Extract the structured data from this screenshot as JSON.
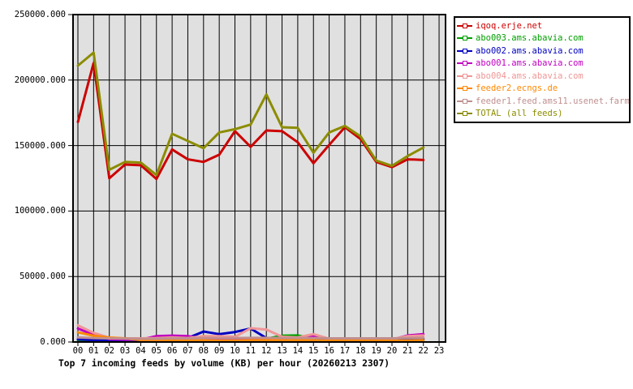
{
  "chart_data": {
    "type": "line",
    "title": "Top 7 incoming feeds by volume (KB) per hour (20260213 2307)",
    "xlabel": "",
    "ylabel": "",
    "x_categories": [
      "00",
      "01",
      "02",
      "03",
      "04",
      "05",
      "06",
      "07",
      "08",
      "09",
      "10",
      "11",
      "12",
      "13",
      "14",
      "15",
      "16",
      "17",
      "18",
      "19",
      "20",
      "21",
      "22",
      "23"
    ],
    "ylim": [
      0,
      250000
    ],
    "yticks": [
      {
        "value": 0,
        "label": "0.000"
      },
      {
        "value": 50000,
        "label": "50000.000"
      },
      {
        "value": 100000,
        "label": "100000.000"
      },
      {
        "value": 150000,
        "label": "150000.000"
      },
      {
        "value": 200000,
        "label": "200000.000"
      },
      {
        "value": 250000,
        "label": "250000.000"
      }
    ],
    "grid": true,
    "plot_bg": "#e0e0e0",
    "grid_color": "#000000",
    "legend_position": "outside-top-right",
    "note": "data points exist for hours 00-22 only",
    "series": [
      {
        "name": "iqoq.erje.net",
        "color": "#cc0000",
        "values": [
          168000,
          213000,
          125000,
          135500,
          135000,
          124500,
          147000,
          139500,
          137500,
          143000,
          161000,
          149000,
          161500,
          161000,
          152500,
          136500,
          150500,
          164000,
          155000,
          137500,
          133500,
          139500,
          139000
        ]
      },
      {
        "name": "abo003.ams.abavia.com",
        "color": "#00a000",
        "values": [
          1500,
          1200,
          1000,
          1000,
          1000,
          1000,
          1500,
          1500,
          2000,
          2500,
          2000,
          2000,
          2500,
          4800,
          5000,
          2800,
          2200,
          1500,
          1500,
          1500,
          1500,
          2000,
          1500
        ]
      },
      {
        "name": "abo002.ams.abavia.com",
        "color": "#0000c0",
        "values": [
          2000,
          1500,
          1200,
          1000,
          1000,
          1500,
          3300,
          3000,
          8000,
          6000,
          7600,
          10300,
          3000,
          2000,
          1500,
          1500,
          1500,
          1200,
          1200,
          1200,
          1200,
          1500,
          2500
        ]
      },
      {
        "name": "abo001.ams.abavia.com",
        "color": "#c000c0",
        "values": [
          10300,
          5500,
          2200,
          1800,
          1800,
          4500,
          4900,
          4500,
          2500,
          2000,
          2000,
          2500,
          2000,
          2000,
          2000,
          4800,
          2000,
          1500,
          1500,
          1500,
          1800,
          5000,
          6000
        ]
      },
      {
        "name": "abo004.ams.abavia.com",
        "color": "#f09696",
        "values": [
          12700,
          7000,
          3200,
          2800,
          2800,
          3000,
          3500,
          3000,
          4500,
          4500,
          4000,
          10500,
          9500,
          4000,
          3500,
          6000,
          2500,
          1800,
          1800,
          1800,
          2200,
          4500,
          5000
        ]
      },
      {
        "name": "feeder2.ecngs.de",
        "color": "#ff8800",
        "values": [
          7400,
          4800,
          3400,
          2800,
          1500,
          1200,
          1200,
          1500,
          1200,
          1000,
          1000,
          1200,
          1500,
          1200,
          1500,
          1200,
          1000,
          900,
          900,
          900,
          900,
          1000,
          1200
        ]
      },
      {
        "name": "feeder1.feed.ams11.usenet.farm",
        "color": "#c08f8f",
        "values": [
          3500,
          3000,
          2800,
          2600,
          2500,
          2500,
          2800,
          2800,
          3000,
          3000,
          3000,
          3200,
          3200,
          3000,
          3000,
          3000,
          2800,
          2800,
          2800,
          2800,
          2800,
          3000,
          3200
        ]
      },
      {
        "name": "TOTAL (all feeds)",
        "color": "#8c8c00",
        "values": [
          211000,
          221000,
          131500,
          137500,
          137000,
          127500,
          159000,
          153500,
          148000,
          160000,
          162500,
          166000,
          189000,
          164000,
          163500,
          144500,
          160000,
          165000,
          157000,
          138500,
          134500,
          142000,
          148500
        ]
      }
    ]
  }
}
